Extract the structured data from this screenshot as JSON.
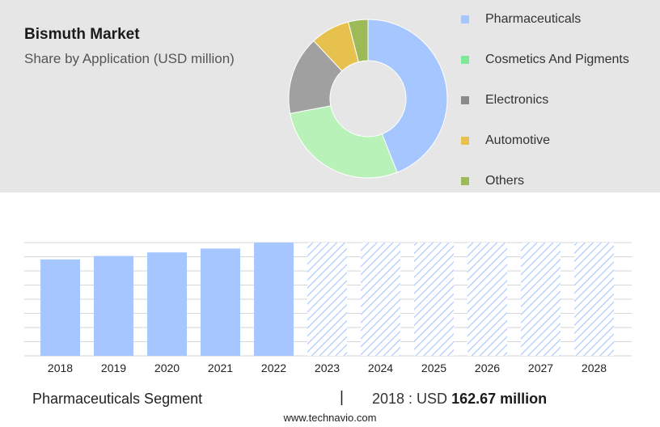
{
  "title": "Bismuth Market",
  "subtitle": "Share by Application (USD million)",
  "chart_data": [
    {
      "type": "pie",
      "donut": true,
      "title": "Bismuth Market",
      "subtitle": "Share by Application (USD million)",
      "legend_position": "right",
      "slices": [
        {
          "label": "Pharmaceuticals",
          "value": 44,
          "color": "#a5c6ff"
        },
        {
          "label": "Cosmetics And Pigments",
          "value": 28,
          "color": "#b9f2b9"
        },
        {
          "label": "Electronics",
          "value": 16,
          "color": "#a0a0a0"
        },
        {
          "label": "Automotive",
          "value": 8,
          "color": "#e6c14d"
        },
        {
          "label": "Others",
          "value": 4,
          "color": "#9cba57"
        }
      ],
      "legend_colors": [
        "#a5c6ff",
        "#7ee899",
        "#8a8a8a",
        "#e6c14d",
        "#9cba57"
      ]
    },
    {
      "type": "bar",
      "categories": [
        "2018",
        "2019",
        "2020",
        "2021",
        "2022",
        "2023",
        "2024",
        "2025",
        "2026",
        "2027",
        "2028"
      ],
      "values": [
        162.67,
        168.5,
        174.5,
        181,
        191,
        null,
        null,
        null,
        null,
        null,
        null
      ],
      "forecast": [
        false,
        false,
        false,
        false,
        false,
        true,
        true,
        true,
        true,
        true,
        true
      ],
      "ylim": [
        0,
        191
      ],
      "grid": true,
      "bar_color": "#a5c6ff",
      "forecast_color": "#a5c6ff"
    }
  ],
  "footer": {
    "segment": "Pharmaceuticals Segment",
    "separator": "|",
    "year_label": "2018 : USD",
    "value": "162.67 million"
  },
  "source": "www.technavio.com"
}
